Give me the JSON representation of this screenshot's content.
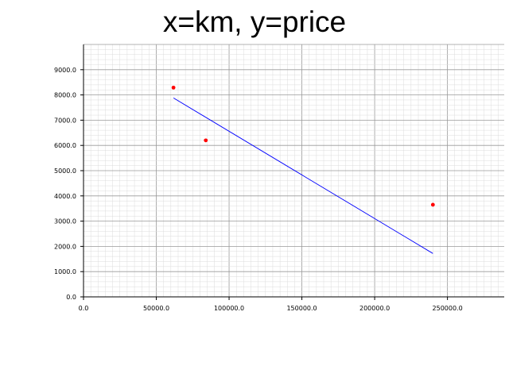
{
  "chart_data": {
    "type": "scatter",
    "title": "x=km, y=price",
    "xlabel": "",
    "ylabel": "",
    "xlim": [
      0,
      289000
    ],
    "ylim": [
      0,
      10000
    ],
    "x_ticks": [
      0,
      50000,
      100000,
      150000,
      200000,
      250000
    ],
    "x_tick_labels": [
      "0.0",
      "50000.0",
      "100000.0",
      "150000.0",
      "200000.0",
      "250000.0"
    ],
    "y_ticks": [
      0,
      1000,
      2000,
      3000,
      4000,
      5000,
      6000,
      7000,
      8000,
      9000
    ],
    "y_tick_labels": [
      "0.0",
      "1000.0",
      "2000.0",
      "3000.0",
      "4000.0",
      "5000.0",
      "6000.0",
      "7000.0",
      "8000.0",
      "9000.0"
    ],
    "grid": true,
    "series": [
      {
        "kind": "scatter",
        "color": "#ff0000",
        "points": [
          {
            "x": 61800,
            "y": 8290
          },
          {
            "x": 84000,
            "y": 6200
          },
          {
            "x": 240000,
            "y": 3650
          }
        ]
      },
      {
        "kind": "line",
        "color": "#0000ff",
        "points": [
          {
            "x": 61800,
            "y": 7880
          },
          {
            "x": 240000,
            "y": 1720
          }
        ]
      }
    ]
  }
}
